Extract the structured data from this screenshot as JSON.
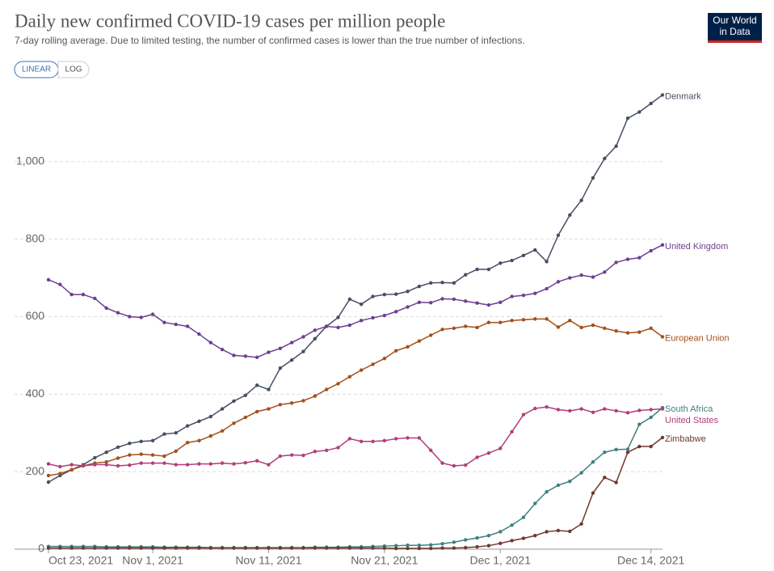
{
  "chart_data": {
    "type": "line",
    "title": "Daily new confirmed COVID-19 cases per million people",
    "subtitle": "7-day rolling average. Due to limited testing, the number of confirmed cases is lower than the true number of infections.",
    "scale_buttons": [
      "LINEAR",
      "LOG"
    ],
    "logo": [
      "Our World",
      "in Data"
    ],
    "log_scale": false,
    "grid": true,
    "x": [
      "2021-10-23",
      "2021-10-24",
      "2021-10-25",
      "2021-10-26",
      "2021-10-27",
      "2021-10-28",
      "2021-10-29",
      "2021-10-30",
      "2021-10-31",
      "2021-11-01",
      "2021-11-02",
      "2021-11-03",
      "2021-11-04",
      "2021-11-05",
      "2021-11-06",
      "2021-11-07",
      "2021-11-08",
      "2021-11-09",
      "2021-11-10",
      "2021-11-11",
      "2021-11-12",
      "2021-11-13",
      "2021-11-14",
      "2021-11-15",
      "2021-11-16",
      "2021-11-17",
      "2021-11-18",
      "2021-11-19",
      "2021-11-20",
      "2021-11-21",
      "2021-11-22",
      "2021-11-23",
      "2021-11-24",
      "2021-11-25",
      "2021-11-26",
      "2021-11-27",
      "2021-11-28",
      "2021-11-29",
      "2021-11-30",
      "2021-12-01",
      "2021-12-02",
      "2021-12-03",
      "2021-12-04",
      "2021-12-05",
      "2021-12-06",
      "2021-12-07",
      "2021-12-08",
      "2021-12-09",
      "2021-12-10",
      "2021-12-11",
      "2021-12-12",
      "2021-12-13",
      "2021-12-14",
      "2021-12-15"
    ],
    "xlim": [
      "2021-10-23",
      "2021-12-15"
    ],
    "xticks": [
      {
        "value": "2021-10-23",
        "label": "Oct 23, 2021"
      },
      {
        "value": "2021-11-01",
        "label": "Nov 1, 2021"
      },
      {
        "value": "2021-11-11",
        "label": "Nov 11, 2021"
      },
      {
        "value": "2021-11-21",
        "label": "Nov 21, 2021"
      },
      {
        "value": "2021-12-01",
        "label": "Dec 1, 2021"
      },
      {
        "value": "2021-12-14",
        "label": "Dec 14, 2021"
      }
    ],
    "ylim": [
      0,
      1200
    ],
    "yticks": [
      0,
      200,
      400,
      600,
      800,
      {
        "value": 1000,
        "label": "1,000"
      }
    ],
    "series": [
      {
        "name": "Denmark",
        "color": "#464f62",
        "values": [
          173,
          190,
          205,
          218,
          236,
          250,
          263,
          273,
          278,
          280,
          297,
          300,
          318,
          330,
          342,
          362,
          382,
          397,
          423,
          412,
          467,
          488,
          510,
          543,
          575,
          598,
          645,
          632,
          652,
          657,
          658,
          665,
          678,
          687,
          688,
          687,
          708,
          722,
          722,
          738,
          745,
          758,
          772,
          742,
          810,
          862,
          900,
          958,
          1008,
          1040,
          1112,
          1128,
          1150,
          1172
        ]
      },
      {
        "name": "United Kingdom",
        "color": "#6d3e91",
        "values": [
          695,
          683,
          657,
          657,
          647,
          622,
          610,
          600,
          598,
          606,
          585,
          580,
          575,
          555,
          533,
          515,
          500,
          498,
          495,
          508,
          518,
          533,
          548,
          565,
          575,
          572,
          578,
          590,
          597,
          603,
          613,
          625,
          637,
          636,
          646,
          645,
          640,
          635,
          630,
          637,
          652,
          655,
          660,
          672,
          690,
          700,
          707,
          702,
          715,
          740,
          748,
          752,
          770,
          785
        ]
      },
      {
        "name": "European Union",
        "color": "#a2501b",
        "values": [
          190,
          195,
          205,
          215,
          222,
          225,
          235,
          243,
          245,
          243,
          240,
          253,
          275,
          280,
          292,
          305,
          325,
          340,
          355,
          362,
          373,
          377,
          383,
          395,
          412,
          427,
          445,
          462,
          477,
          492,
          512,
          522,
          537,
          552,
          567,
          570,
          575,
          572,
          585,
          585,
          590,
          592,
          594,
          594,
          573,
          590,
          572,
          578,
          570,
          563,
          558,
          560,
          570,
          548
        ]
      },
      {
        "name": "South Africa",
        "color": "#40807d",
        "values": [
          7,
          7,
          7,
          7,
          7,
          6,
          6,
          6,
          6,
          6,
          5,
          5,
          5,
          5,
          4,
          4,
          4,
          4,
          4,
          4,
          4,
          4,
          4,
          5,
          5,
          5,
          6,
          6,
          7,
          8,
          9,
          10,
          10,
          11,
          14,
          18,
          24,
          29,
          35,
          45,
          62,
          82,
          118,
          148,
          165,
          175,
          197,
          225,
          250,
          257,
          258,
          322,
          340,
          365
        ]
      },
      {
        "name": "United States",
        "color": "#b13e78",
        "values": [
          220,
          213,
          218,
          215,
          218,
          218,
          215,
          217,
          222,
          222,
          222,
          218,
          218,
          220,
          220,
          222,
          220,
          223,
          228,
          218,
          240,
          243,
          242,
          252,
          255,
          262,
          285,
          278,
          278,
          280,
          285,
          287,
          287,
          255,
          222,
          215,
          217,
          237,
          248,
          260,
          303,
          347,
          363,
          367,
          360,
          357,
          362,
          353,
          362,
          357,
          352,
          358,
          360,
          362
        ]
      },
      {
        "name": "Zimbabwe",
        "color": "#70382f",
        "values": [
          3,
          3,
          3,
          3,
          3,
          3,
          3,
          3,
          3,
          3,
          3,
          3,
          3,
          3,
          3,
          3,
          3,
          3,
          3,
          3,
          3,
          3,
          3,
          3,
          3,
          3,
          3,
          3,
          3,
          3,
          2,
          2,
          2,
          2,
          3,
          3,
          4,
          6,
          9,
          15,
          22,
          28,
          35,
          45,
          48,
          46,
          65,
          145,
          185,
          172,
          250,
          265,
          265,
          288
        ]
      }
    ]
  }
}
